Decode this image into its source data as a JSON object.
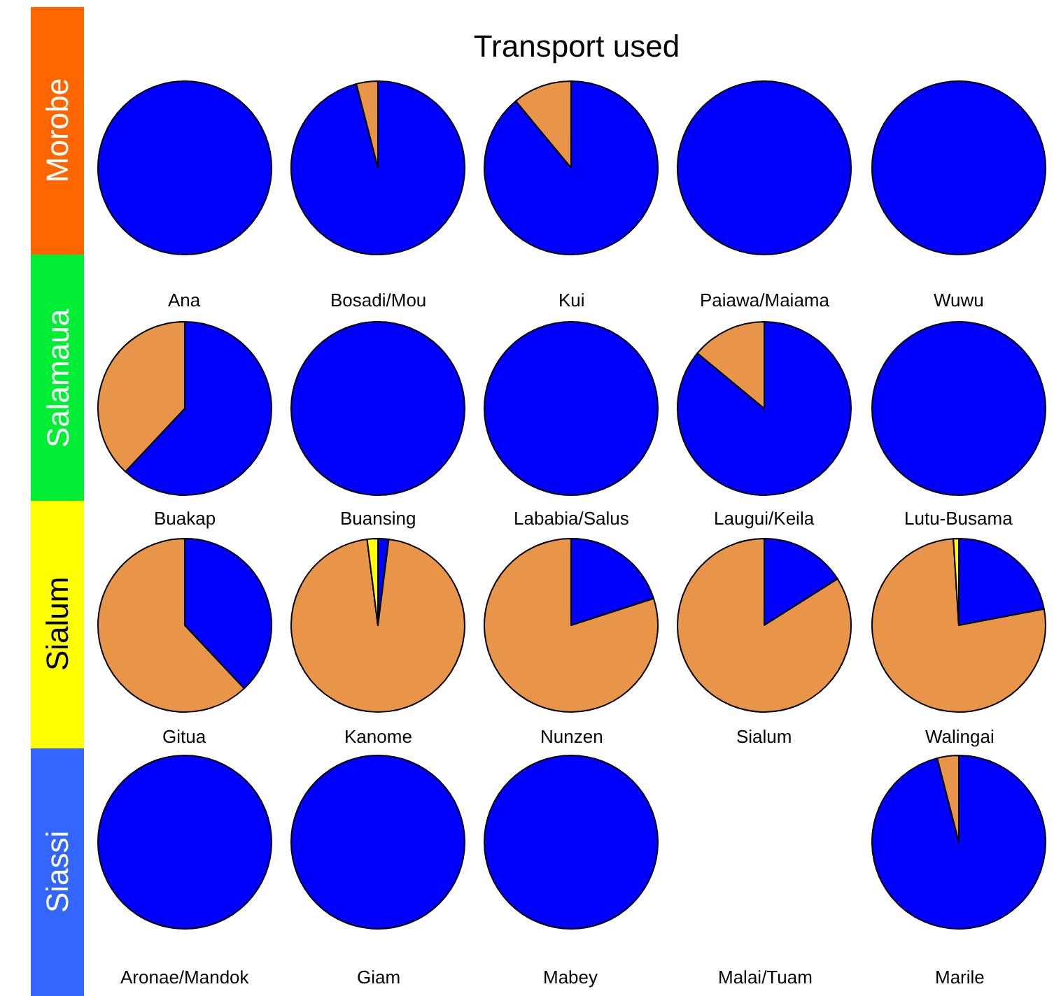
{
  "chart_data": [
    {
      "type": "other",
      "title": "Transport used",
      "annotations": [
        "Morobe",
        "Salamaua",
        "Sialum",
        "Siassi"
      ],
      "colors": [
        "#ff6600",
        "#00ee33",
        "#ffff00",
        "#3366ff"
      ]
    },
    {
      "type": "pie",
      "xlabel": "Ana",
      "categories": [
        null
      ],
      "values": [
        100
      ],
      "colors": [
        "#0000ff"
      ]
    },
    {
      "type": "pie",
      "xlabel": "Bosadi/Mou",
      "categories": [
        null,
        null
      ],
      "values": [
        96,
        4
      ],
      "colors": [
        "#0000ff",
        "#e8954a"
      ]
    },
    {
      "type": "pie",
      "xlabel": "Kui",
      "categories": [
        null,
        null
      ],
      "values": [
        89,
        11
      ],
      "colors": [
        "#0000ff",
        "#e8954a"
      ]
    },
    {
      "type": "pie",
      "xlabel": "Paiawa/Maiama",
      "categories": [
        null
      ],
      "values": [
        100
      ],
      "colors": [
        "#0000ff"
      ]
    },
    {
      "type": "pie",
      "xlabel": "Wuwu",
      "categories": [
        null
      ],
      "values": [
        100
      ],
      "colors": [
        "#0000ff"
      ]
    },
    {
      "type": "pie",
      "xlabel": "Buakap",
      "categories": [
        null,
        null
      ],
      "values": [
        62,
        38
      ],
      "colors": [
        "#0000ff",
        "#e8954a"
      ]
    },
    {
      "type": "pie",
      "xlabel": "Buansing",
      "categories": [
        null
      ],
      "values": [
        100
      ],
      "colors": [
        "#0000ff"
      ]
    },
    {
      "type": "pie",
      "xlabel": "Lababia/Salus",
      "categories": [
        null
      ],
      "values": [
        100
      ],
      "colors": [
        "#0000ff"
      ]
    },
    {
      "type": "pie",
      "xlabel": "Laugui/Keila",
      "categories": [
        null,
        null
      ],
      "values": [
        86,
        14
      ],
      "colors": [
        "#0000ff",
        "#e8954a"
      ]
    },
    {
      "type": "pie",
      "xlabel": "Lutu-Busama",
      "categories": [
        null
      ],
      "values": [
        100
      ],
      "colors": [
        "#0000ff"
      ]
    },
    {
      "type": "pie",
      "xlabel": "Gitua",
      "categories": [
        null,
        null
      ],
      "values": [
        38,
        62
      ],
      "colors": [
        "#0000ff",
        "#e8954a"
      ]
    },
    {
      "type": "pie",
      "xlabel": "Kanome",
      "categories": [
        null,
        null,
        null
      ],
      "values": [
        2,
        96,
        2
      ],
      "colors": [
        "#0000ff",
        "#e8954a",
        "#ffff00"
      ]
    },
    {
      "type": "pie",
      "xlabel": "Nunzen",
      "categories": [
        null,
        null
      ],
      "values": [
        20,
        80
      ],
      "colors": [
        "#0000ff",
        "#e8954a"
      ]
    },
    {
      "type": "pie",
      "xlabel": "Sialum",
      "categories": [
        null,
        null
      ],
      "values": [
        16,
        84
      ],
      "colors": [
        "#0000ff",
        "#e8954a"
      ]
    },
    {
      "type": "pie",
      "xlabel": "Walingai",
      "categories": [
        null,
        null,
        null
      ],
      "values": [
        22,
        77,
        1
      ],
      "colors": [
        "#0000ff",
        "#e8954a",
        "#ffff00"
      ]
    },
    {
      "type": "pie",
      "xlabel": "Aronae/Mandok",
      "categories": [
        null
      ],
      "values": [
        100
      ],
      "colors": [
        "#0000ff"
      ]
    },
    {
      "type": "pie",
      "xlabel": "Giam",
      "categories": [
        null
      ],
      "values": [
        100
      ],
      "colors": [
        "#0000ff"
      ]
    },
    {
      "type": "pie",
      "xlabel": "Mabey",
      "categories": [
        null
      ],
      "values": [
        100
      ],
      "colors": [
        "#0000ff"
      ]
    },
    {
      "type": "pie",
      "xlabel": "Malai/Tuam"
    },
    {
      "type": "pie",
      "xlabel": "Marile",
      "categories": [
        null,
        null
      ],
      "values": [
        96,
        4
      ],
      "colors": [
        "#0000ff",
        "#e8954a"
      ]
    }
  ]
}
